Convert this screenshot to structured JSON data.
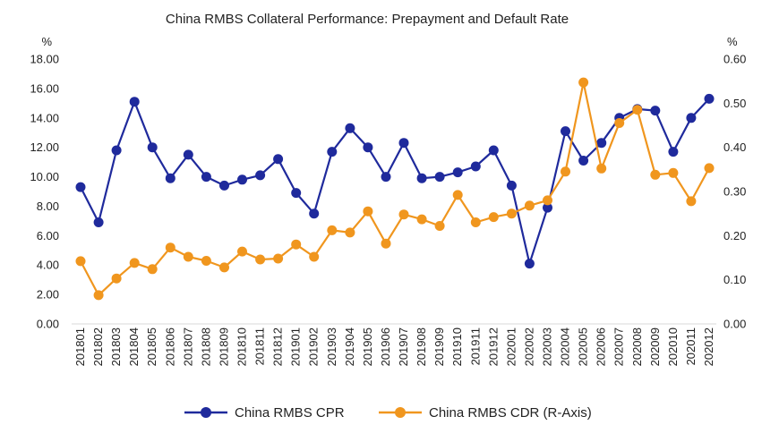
{
  "chart_data": {
    "type": "line",
    "title": "China RMBS Collateral Performance: Prepayment and Default Rate",
    "y_left_unit": "%",
    "y_right_unit": "%",
    "y_left_lim": [
      0,
      18
    ],
    "y_left_ticks": [
      "0.00",
      "2.00",
      "4.00",
      "6.00",
      "8.00",
      "10.00",
      "12.00",
      "14.00",
      "16.00",
      "18.00"
    ],
    "y_right_lim": [
      0,
      0.6
    ],
    "y_right_ticks": [
      "0.00",
      "0.10",
      "0.20",
      "0.30",
      "0.40",
      "0.50",
      "0.60"
    ],
    "grid": false,
    "legend_position": "bottom",
    "categories": [
      "201801",
      "201802",
      "201803",
      "201804",
      "201805",
      "201806",
      "201807",
      "201808",
      "201809",
      "201810",
      "201811",
      "201812",
      "201901",
      "201902",
      "201903",
      "201904",
      "201905",
      "201906",
      "201907",
      "201908",
      "201909",
      "201910",
      "201911",
      "201912",
      "202001",
      "202002",
      "202003",
      "202004",
      "202005",
      "202006",
      "202007",
      "202008",
      "202009",
      "202010",
      "202011",
      "202012"
    ],
    "series": [
      {
        "name": "China RMBS CPR",
        "axis": "left",
        "color": "#1f2a9c",
        "values": [
          9.3,
          6.9,
          11.8,
          15.1,
          12.0,
          9.9,
          11.5,
          10.0,
          9.4,
          9.8,
          10.1,
          11.2,
          8.9,
          7.5,
          11.7,
          13.3,
          12.0,
          10.0,
          12.3,
          9.9,
          10.0,
          10.3,
          10.7,
          11.8,
          9.4,
          4.1,
          7.9,
          13.1,
          11.1,
          12.3,
          14.0,
          14.6,
          14.5,
          11.7,
          14.0,
          15.3
        ]
      },
      {
        "name": "China RMBS CDR (R-Axis)",
        "axis": "right",
        "color": "#f0961e",
        "values": [
          0.142,
          0.065,
          0.103,
          0.138,
          0.124,
          0.173,
          0.152,
          0.143,
          0.128,
          0.164,
          0.146,
          0.148,
          0.18,
          0.152,
          0.212,
          0.207,
          0.255,
          0.182,
          0.248,
          0.237,
          0.222,
          0.292,
          0.23,
          0.242,
          0.25,
          0.268,
          0.28,
          0.345,
          0.547,
          0.352,
          0.455,
          0.485,
          0.338,
          0.342,
          0.278,
          0.353
        ]
      }
    ]
  }
}
